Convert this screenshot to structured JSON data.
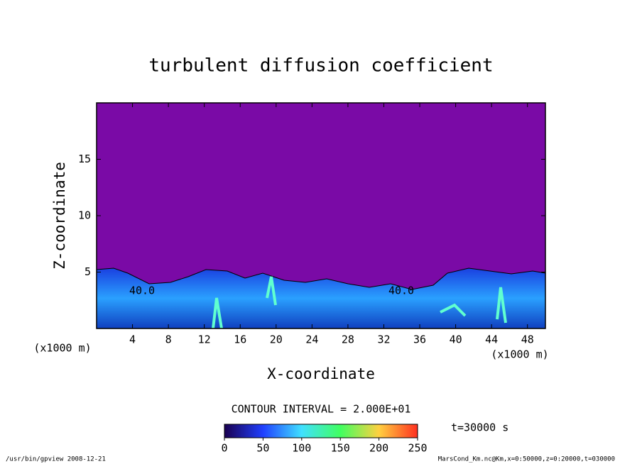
{
  "chart_data": {
    "type": "contour",
    "title": "turbulent diffusion coefficient",
    "x_label": "X-coordinate",
    "y_label": "Z-coordinate",
    "x_unit": "(x1000 m)",
    "xlim": [
      0,
      50
    ],
    "xticks": [
      4,
      8,
      12,
      16,
      20,
      24,
      28,
      32,
      36,
      40,
      44,
      48
    ],
    "ylim": [
      0,
      20
    ],
    "yticks": [
      5,
      10,
      15
    ],
    "contour_interval": "CONTOUR INTERVAL = 2.000E+01",
    "contour_labels": [
      "40.0",
      "40.0"
    ],
    "time_label": "t=30000 s",
    "colorbar": {
      "lim": [
        0,
        250
      ],
      "ticks": [
        0,
        50,
        100,
        150,
        200,
        250
      ]
    },
    "footer_left": "/usr/bin/gpview  2008-12-21",
    "footer_right": "MarsCond_Km.nc@Km,x=0:50000,z=0:20000,t=030000"
  }
}
